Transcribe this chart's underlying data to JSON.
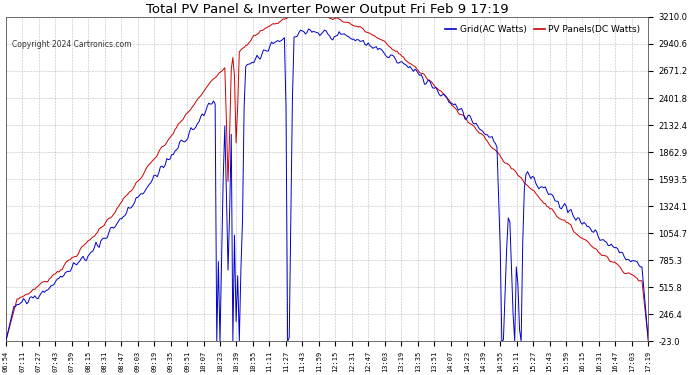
{
  "title": "Total PV Panel & Inverter Power Output Fri Feb 9 17:19",
  "copyright": "Copyright 2024 Cartronics.com",
  "legend_grid": "Grid(AC Watts)",
  "legend_pv": "PV Panels(DC Watts)",
  "color_grid": "#0000cc",
  "color_pv": "#cc0000",
  "background_color": "#ffffff",
  "grid_color": "#aaaaaa",
  "ylim": [
    -23.0,
    3210.0
  ],
  "yticks": [
    -23.0,
    246.4,
    515.8,
    785.3,
    1054.7,
    1324.1,
    1593.5,
    1862.9,
    2132.4,
    2401.8,
    2671.2,
    2940.6,
    3210.0
  ],
  "xtick_labels": [
    "06:54",
    "07:11",
    "07:27",
    "07:43",
    "07:59",
    "08:15",
    "08:31",
    "08:47",
    "09:03",
    "09:19",
    "09:35",
    "09:51",
    "10:07",
    "10:23",
    "10:39",
    "10:55",
    "11:11",
    "11:27",
    "11:43",
    "11:59",
    "12:15",
    "12:31",
    "12:47",
    "13:03",
    "13:19",
    "13:35",
    "13:51",
    "14:07",
    "14:23",
    "14:39",
    "14:55",
    "15:11",
    "15:27",
    "15:43",
    "15:59",
    "16:15",
    "16:31",
    "16:47",
    "17:03",
    "17:19"
  ],
  "n_ticks": 40
}
